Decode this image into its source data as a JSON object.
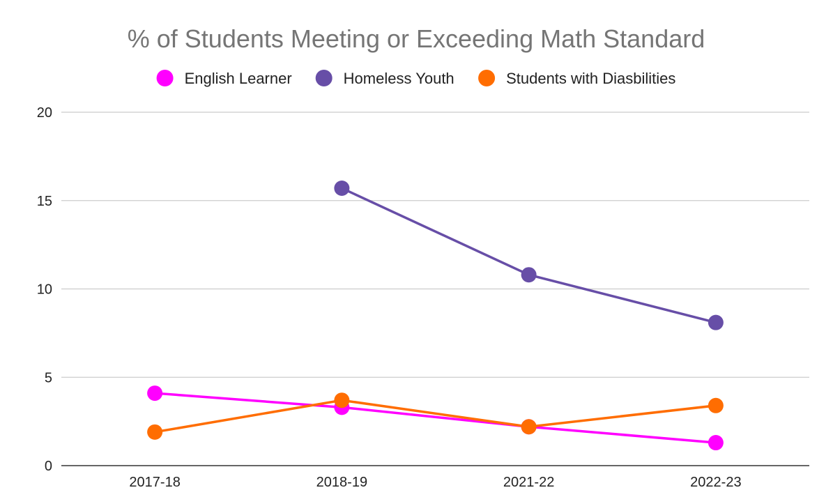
{
  "chart_data": {
    "type": "line",
    "title": "% of Students Meeting or Exceeding Math Standard",
    "xlabel": "",
    "ylabel": "",
    "categories": [
      "2017-18",
      "2018-19",
      "2021-22",
      "2022-23"
    ],
    "ylim": [
      0,
      20
    ],
    "yticks": [
      "0",
      "5",
      "10",
      "15",
      "20"
    ],
    "grid": true,
    "legend_position": "top",
    "series": [
      {
        "name": "English Learner",
        "color": "#ff00ff",
        "values": [
          4.1,
          3.3,
          2.2,
          1.3
        ]
      },
      {
        "name": "Homeless Youth",
        "color": "#674ea7",
        "values": [
          null,
          15.7,
          10.8,
          8.1
        ]
      },
      {
        "name": "Students with Diasbilities",
        "color": "#ff6d01",
        "values": [
          1.9,
          3.7,
          2.2,
          3.4
        ]
      }
    ]
  }
}
